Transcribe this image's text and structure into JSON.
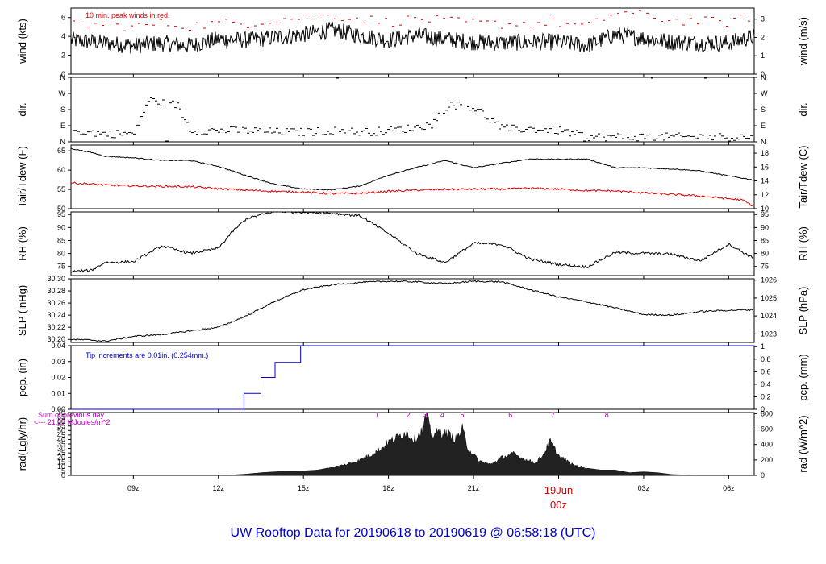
{
  "chart_data": {
    "type": "line",
    "title": "UW Rooftop Data for 20190618  to  20190619 @ 06:58:18  (UTC)",
    "x_axis": {
      "ticks": [
        "09z",
        "12z",
        "15z",
        "18z",
        "21z",
        "03z",
        "06z"
      ],
      "date_label": "19Jun",
      "date_sublabel": "00z",
      "date_color": "#dd0000",
      "range_hours": [
        6.8,
        30.9
      ]
    },
    "panels": [
      {
        "id": "wind",
        "ylabel_left": "wind (kts)",
        "ylabel_right": "wind (m/s)",
        "ylim": [
          0,
          7
        ],
        "left_ticks": [
          0,
          2,
          4,
          6
        ],
        "right_ticks": [
          0,
          1,
          2,
          3
        ],
        "annotation": "10 min. peak winds in red.",
        "annotation_color": "#dd0000",
        "series": [
          {
            "color": "#000000",
            "style": "line",
            "x": [
              6.8,
              8,
              9,
              10,
              11,
              12,
              13,
              14,
              15,
              16,
              17,
              18,
              19,
              20,
              21,
              22,
              23,
              24,
              25,
              26,
              27,
              28,
              29,
              30,
              30.9
            ],
            "y": [
              3.6,
              3.3,
              3.0,
              3.3,
              3.0,
              3.7,
              3.6,
              3.9,
              4.2,
              4.7,
              4.1,
              3.6,
              4.1,
              3.7,
              3.4,
              3.3,
              3.4,
              3.4,
              3.0,
              4.2,
              3.8,
              3.4,
              3.3,
              3.3,
              4.0
            ]
          },
          {
            "color": "#dd0000",
            "style": "dash",
            "x": [
              6.8,
              8,
              9,
              10,
              11,
              12,
              13,
              14,
              15,
              16,
              17,
              18,
              19,
              20,
              21,
              22,
              23,
              24,
              25,
              26,
              27,
              28,
              29,
              30,
              30.9
            ],
            "y": [
              5.3,
              5.2,
              5.0,
              5.4,
              5.1,
              5.4,
              5.4,
              5.8,
              6.0,
              6.2,
              5.9,
              5.5,
              5.9,
              5.6,
              5.4,
              5.3,
              5.4,
              5.4,
              5.0,
              6.6,
              6.2,
              5.7,
              5.6,
              5.5,
              6.2
            ]
          }
        ]
      },
      {
        "id": "dir",
        "ylabel_left": "dir.",
        "ylabel_right": "dir.",
        "ylim": [
          0,
          4
        ],
        "left_ticks": [
          "N",
          "E",
          "S",
          "W",
          "N"
        ],
        "right_ticks": [
          "N",
          "E",
          "S",
          "W",
          "N"
        ],
        "series": [
          {
            "color": "#000000",
            "style": "dash",
            "x": [
              6.8,
              8,
              9,
              9.5,
              10,
              10.5,
              11,
              12,
              13,
              14,
              15,
              16,
              17,
              18,
              19,
              19.5,
              20,
              20.5,
              21,
              22,
              23,
              24,
              25,
              26,
              27,
              28,
              29,
              30,
              30.9
            ],
            "y": [
              0.7,
              0.5,
              0.5,
              2.6,
              2.4,
              2.3,
              0.7,
              0.7,
              0.7,
              0.6,
              0.6,
              0.7,
              0.6,
              0.7,
              0.9,
              1.1,
              2.2,
              2.3,
              2.1,
              0.8,
              0.8,
              0.7,
              0.3,
              0.3,
              0.3,
              0.3,
              0.3,
              0.3,
              0.3
            ]
          }
        ]
      },
      {
        "id": "temp",
        "ylabel_left": "Tair/Tdew (F)",
        "ylabel_right": "Tair/Tdew (C)",
        "ylim": [
          50,
          66.5
        ],
        "left_ticks": [
          50,
          55,
          60,
          65
        ],
        "right_ticks": [
          10,
          12,
          14,
          16,
          18
        ],
        "series": [
          {
            "color": "#000000",
            "style": "line",
            "x": [
              6.8,
              7.5,
              8,
              9,
              10,
              11,
              12,
              13,
              14,
              15,
              16,
              17,
              18,
              19,
              20,
              21,
              22,
              23,
              24,
              25,
              26,
              27,
              28,
              29,
              30,
              30.9
            ],
            "y": [
              65.6,
              64.6,
              63.6,
              63.2,
              62.5,
              62.5,
              61.0,
              58.5,
              56.3,
              55.1,
              54.9,
              55.9,
              58.7,
              60.7,
              62.5,
              60.6,
              61.8,
              62.9,
              62.8,
              62.9,
              60.6,
              60.6,
              60.3,
              59.8,
              58.5,
              57.4
            ]
          },
          {
            "color": "#dd0000",
            "style": "line",
            "x": [
              6.8,
              7.5,
              8,
              9,
              10,
              11,
              12,
              13,
              14,
              15,
              16,
              17,
              18,
              19,
              20,
              21,
              22,
              23,
              24,
              25,
              26,
              27,
              28,
              29,
              30,
              30.5,
              30.9
            ],
            "y": [
              56.7,
              56.4,
              56.1,
              55.9,
              55.8,
              55.7,
              55.2,
              54.8,
              54.5,
              54.3,
              53.9,
              54.0,
              54.5,
              54.8,
              55.0,
              55.1,
              55.1,
              55.3,
              55.1,
              54.7,
              54.6,
              54.1,
              53.7,
              53.3,
              52.6,
              52.2,
              50.5
            ]
          }
        ]
      },
      {
        "id": "rh",
        "ylabel_left": "RH (%)",
        "ylabel_right": "RH (%)",
        "ylim": [
          71.5,
          96
        ],
        "left_ticks": [
          75,
          80,
          85,
          90,
          95
        ],
        "right_ticks": [
          75,
          80,
          85,
          90,
          95
        ],
        "series": [
          {
            "color": "#000000",
            "style": "line",
            "x": [
              6.8,
              7.5,
              8,
              9,
              10,
              11,
              12,
              12.5,
              13,
              14,
              15,
              16,
              17,
              18,
              19,
              20,
              21,
              22,
              23,
              24,
              25,
              26,
              27,
              28,
              29,
              30,
              30.9
            ],
            "y": [
              73.0,
              73.5,
              76.5,
              76.8,
              82.9,
              80.0,
              82.0,
              88.5,
              93.5,
              96.2,
              96.0,
              95.5,
              94.5,
              87.7,
              80.0,
              76.5,
              83.9,
              83.5,
              77.8,
              75.8,
              74.8,
              80.4,
              80.1,
              79.7,
              77.2,
              83.6,
              78.0
            ]
          }
        ]
      },
      {
        "id": "slp",
        "ylabel_left": "SLP (inHg)",
        "ylabel_right": "SLP (hPa)",
        "ylim": [
          30.195,
          30.3
        ],
        "left_ticks": [
          30.2,
          30.22,
          30.24,
          30.26,
          30.28,
          30.3
        ],
        "right_ticks": [
          1023,
          1024,
          1025,
          1026
        ],
        "series": [
          {
            "color": "#000000",
            "style": "line",
            "x": [
              6.8,
              7.5,
              8,
              9,
              10,
              11,
              12,
              13,
              14,
              15,
              16,
              17,
              18,
              19,
              20,
              21,
              22,
              23,
              24,
              25,
              26,
              27,
              28,
              29,
              30,
              30.9
            ],
            "y": [
              30.2,
              30.199,
              30.197,
              30.205,
              30.208,
              30.214,
              30.22,
              30.239,
              30.263,
              30.282,
              30.29,
              30.294,
              30.296,
              30.295,
              30.292,
              30.296,
              30.295,
              30.282,
              30.27,
              30.262,
              30.252,
              30.241,
              30.24,
              30.246,
              30.248,
              30.249
            ]
          }
        ]
      },
      {
        "id": "pcp",
        "ylabel_left": "pcp. (in)",
        "ylabel_right": "pcp. (mm)",
        "ylim": [
          0,
          0.04
        ],
        "left_ticks": [
          0.0,
          0.01,
          0.02,
          0.03,
          0.04
        ],
        "right_ticks": [
          0,
          0.2,
          0.4,
          0.6,
          0.8,
          1
        ],
        "annotation": "Tip increments are 0.01in. (0.254mm.)",
        "annotation_color": "#0000cc",
        "series": [
          {
            "color": "#0000cc",
            "style": "step",
            "x": [
              6.8,
              12.9,
              12.9,
              13.5,
              13.5,
              14.0,
              14.0,
              14.9,
              14.9,
              30.9
            ],
            "y": [
              0,
              0,
              0.01,
              0.01,
              0.02,
              0.02,
              0.0295,
              0.0295,
              0.04,
              0.04
            ]
          }
        ]
      },
      {
        "id": "rad",
        "ylabel_left": "rad(Lgly/hr)",
        "ylabel_right": "rad (W/m^2)",
        "ylim": [
          0,
          70
        ],
        "left_ticks": [
          0,
          5,
          10,
          15,
          20,
          25,
          30,
          35,
          40,
          45,
          50,
          55,
          60,
          65,
          70
        ],
        "right_ticks": [
          0,
          200,
          400,
          600,
          800
        ],
        "annotation": "Sum of previous day",
        "annotation2": "<--- 21.27 MJoules/m^2",
        "annotation_color": "#bb00bb",
        "markers": [
          "1",
          "2",
          "3",
          "4",
          "5",
          "6",
          "7",
          "8"
        ],
        "marker_x": [
          17.6,
          18.7,
          19.3,
          19.9,
          20.6,
          22.3,
          23.8,
          25.7
        ],
        "series": [
          {
            "color": "#000000",
            "style": "area",
            "x": [
              11.9,
              12.5,
              13,
              13.5,
              14,
              14.5,
              15,
              15.5,
              16,
              16.5,
              17,
              17.5,
              17.8,
              18,
              18.3,
              18.6,
              18.9,
              19.2,
              19.35,
              19.5,
              19.8,
              20.1,
              20.4,
              20.6,
              20.8,
              21.2,
              21.6,
              22,
              22.4,
              22.8,
              23.2,
              23.5,
              23.7,
              24,
              24.5,
              25,
              25.5,
              26,
              26.5,
              27,
              27.5,
              28,
              28.5,
              29
            ],
            "y": [
              0,
              0.5,
              1.5,
              3,
              4,
              4.5,
              5,
              6,
              9,
              12,
              17,
              25,
              31,
              37,
              42,
              48,
              40,
              50,
              68,
              45,
              48,
              46,
              40,
              52,
              30,
              16,
              12,
              20,
              24,
              18,
              14,
              25,
              38,
              22,
              12,
              8,
              6,
              6,
              3,
              4,
              3,
              1,
              0.5,
              0
            ]
          }
        ]
      }
    ]
  }
}
